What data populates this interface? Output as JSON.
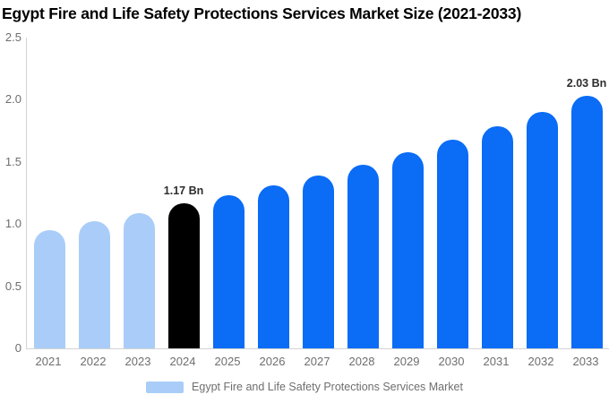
{
  "title": "Egypt Fire and Life Safety Protections Services Market Size (2021-2033)",
  "chart_data": {
    "type": "bar",
    "title": "Egypt Fire and Life Safety Protections Services Market Size (2021-2033)",
    "categories": [
      "2021",
      "2022",
      "2023",
      "2024",
      "2025",
      "2026",
      "2027",
      "2028",
      "2029",
      "2030",
      "2031",
      "2032",
      "2033"
    ],
    "values": [
      0.95,
      1.02,
      1.09,
      1.17,
      1.23,
      1.31,
      1.39,
      1.48,
      1.58,
      1.68,
      1.79,
      1.9,
      2.03
    ],
    "unit": "Bn",
    "xlabel": "",
    "ylabel": "",
    "ylim": [
      0,
      2.5
    ],
    "y_ticks": [
      "0",
      "0.5",
      "1.0",
      "1.5",
      "2.0",
      "2.5"
    ],
    "grid": false,
    "legend_position": "bottom",
    "bar_colors": [
      "#a9cdf8",
      "#a9cdf8",
      "#a9cdf8",
      "#000000",
      "#0b6cf6",
      "#0b6cf6",
      "#0b6cf6",
      "#0b6cf6",
      "#0b6cf6",
      "#0b6cf6",
      "#0b6cf6",
      "#0b6cf6",
      "#0b6cf6"
    ],
    "annotations": [
      {
        "category": "2024",
        "text": "1.17 Bn"
      },
      {
        "category": "2033",
        "text": "2.03 Bn"
      }
    ]
  },
  "legend": {
    "label": "Egypt Fire and Life Safety Protections Services Market",
    "swatch_color": "#a9cdf8"
  },
  "colors": {
    "historical_bar": "#a9cdf8",
    "base_year_bar": "#000000",
    "forecast_bar": "#0b6cf6",
    "axis_line": "#d4d4d4",
    "tick_text": "#6e6e6e",
    "value_label_text": "#2d2d2d",
    "title_text": "#000000"
  }
}
